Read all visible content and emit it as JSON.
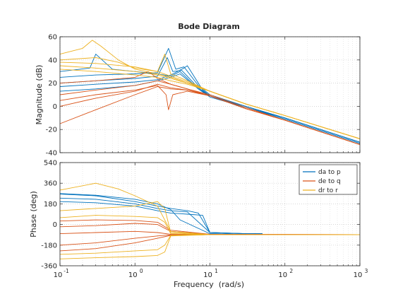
{
  "chart_data": {
    "type": "line",
    "title": "Bode Diagram",
    "xlabel": "Frequency  (rad/s)",
    "xscale": "log",
    "xlim": [
      0.1,
      1000
    ],
    "x_ticks": [
      {
        "base": "10",
        "exp": "-1"
      },
      {
        "base": "10",
        "exp": "0"
      },
      {
        "base": "10",
        "exp": "1"
      },
      {
        "base": "10",
        "exp": "2"
      },
      {
        "base": "10",
        "exp": "3"
      }
    ],
    "grid": true,
    "legend_position": "top-right of phase panel",
    "series": [
      {
        "name": "da to p",
        "color": "#0072BD"
      },
      {
        "name": "de to q",
        "color": "#D95319"
      },
      {
        "name": "dr to r",
        "color": "#EDB120"
      }
    ],
    "panels": [
      {
        "ylabel": "Magnitude (dB)",
        "ylim": [
          -40,
          60
        ],
        "yticks": [
          "60",
          "40",
          "20",
          "0",
          "-20",
          "-40"
        ],
        "curves": {
          "da to p": [
            {
              "x": [
                0.1,
                0.3,
                1,
                2,
                2.8,
                3.5,
                4.5,
                7,
                10,
                30,
                100,
                1000
              ],
              "y": [
                25,
                27,
                28,
                29,
                50,
                32,
                34,
                18,
                10,
                0,
                -10,
                -31
              ]
            },
            {
              "x": [
                0.1,
                0.3,
                1,
                2,
                2.7,
                3.2,
                4.2,
                7,
                10,
                30,
                100,
                1000
              ],
              "y": [
                20,
                22,
                24,
                26,
                42,
                30,
                31,
                16,
                9,
                -1,
                -11,
                -32
              ]
            },
            {
              "x": [
                0.1,
                0.3,
                1,
                2,
                3,
                4.5,
                5,
                8,
                10,
                30,
                100,
                1000
              ],
              "y": [
                17,
                19,
                21,
                23,
                27,
                33,
                35,
                14,
                9,
                -1,
                -10,
                -31
              ]
            },
            {
              "x": [
                0.1,
                0.3,
                1,
                2,
                3,
                4,
                7,
                10,
                30,
                100,
                1000
              ],
              "y": [
                13,
                15,
                18,
                22,
                25,
                28,
                15,
                8,
                -1,
                -11,
                -32
              ]
            },
            {
              "x": [
                0.1,
                0.25,
                0.3,
                0.5,
                1,
                2,
                3,
                4,
                7,
                10,
                30,
                100,
                1000
              ],
              "y": [
                30,
                33,
                45,
                32,
                30,
                28,
                26,
                30,
                15,
                9,
                0,
                -10,
                -31
              ]
            }
          ],
          "de to q": [
            {
              "x": [
                0.1,
                0.3,
                1,
                2,
                2.6,
                2.8,
                3.2,
                5,
                10,
                30,
                100,
                1000
              ],
              "y": [
                5,
                10,
                14,
                18,
                10,
                -3,
                10,
                13,
                9,
                -2,
                -12,
                -33
              ]
            },
            {
              "x": [
                0.1,
                0.3,
                1,
                2,
                3,
                5,
                10,
                30,
                100,
                1000
              ],
              "y": [
                -15,
                -3,
                10,
                17,
                15,
                14,
                9,
                -2,
                -12,
                -33
              ]
            },
            {
              "x": [
                0.1,
                0.3,
                1,
                2,
                3,
                5,
                10,
                30,
                100,
                1000
              ],
              "y": [
                0,
                7,
                13,
                19,
                16,
                14,
                9,
                -2,
                -12,
                -33
              ]
            },
            {
              "x": [
                0.1,
                0.3,
                1,
                2,
                3,
                5,
                10,
                30,
                100,
                1000
              ],
              "y": [
                10,
                14,
                18,
                22,
                19,
                15,
                9,
                -2,
                -12,
                -33
              ]
            },
            {
              "x": [
                0.1,
                0.3,
                1,
                1.5,
                2,
                3,
                5,
                10,
                30,
                100,
                1000
              ],
              "y": [
                20,
                22,
                25,
                30,
                24,
                19,
                15,
                10,
                -1,
                -12,
                -33
              ]
            }
          ],
          "dr to r": [
            {
              "x": [
                0.1,
                0.2,
                0.27,
                0.35,
                0.6,
                1,
                2,
                3,
                5,
                10,
                30,
                100,
                1000
              ],
              "y": [
                45,
                50,
                57,
                52,
                40,
                32,
                28,
                25,
                20,
                13,
                2,
                -8,
                -28
              ]
            },
            {
              "x": [
                0.1,
                0.3,
                0.6,
                1,
                2,
                2.5,
                3,
                5,
                10,
                30,
                100,
                1000
              ],
              "y": [
                40,
                42,
                38,
                33,
                30,
                45,
                28,
                22,
                13,
                2,
                -8,
                -28
              ]
            },
            {
              "x": [
                0.1,
                0.3,
                1,
                2,
                3,
                5,
                10,
                30,
                100,
                1000
              ],
              "y": [
                38,
                37,
                34,
                30,
                26,
                21,
                13,
                2,
                -8,
                -28
              ]
            },
            {
              "x": [
                0.1,
                0.3,
                1,
                2,
                3,
                5,
                10,
                30,
                100,
                1000
              ],
              "y": [
                35,
                33,
                30,
                27,
                24,
                20,
                13,
                2,
                -8,
                -28
              ]
            },
            {
              "x": [
                0.1,
                0.3,
                1,
                2,
                3,
                5,
                10,
                30,
                100,
                1000
              ],
              "y": [
                32,
                30,
                27,
                25,
                22,
                19,
                13,
                2,
                -8,
                -28
              ]
            }
          ]
        }
      },
      {
        "ylabel": "Phase (deg)",
        "ylim": [
          -360,
          540
        ],
        "yticks": [
          "540",
          "360",
          "180",
          "0",
          "-180",
          "-360"
        ],
        "curves": {
          "da to p": [
            {
              "x": [
                0.1,
                0.3,
                1,
                2,
                3,
                5,
                7,
                10,
                30,
                50
              ],
              "y": [
                265,
                250,
                200,
                160,
                140,
                120,
                100,
                -70,
                -80,
                -80
              ]
            },
            {
              "x": [
                0.1,
                0.3,
                1,
                2,
                3,
                5,
                10,
                30,
                50
              ],
              "y": [
                230,
                220,
                180,
                140,
                120,
                110,
                -70,
                -80,
                -80
              ]
            },
            {
              "x": [
                0.1,
                0.3,
                1,
                2,
                3,
                5,
                8,
                10,
                30,
                50
              ],
              "y": [
                200,
                190,
                160,
                120,
                100,
                90,
                80,
                -70,
                -80,
                -80
              ]
            },
            {
              "x": [
                0.1,
                0.3,
                1,
                2,
                3,
                4,
                10,
                30
              ],
              "y": [
                270,
                255,
                220,
                180,
                130,
                40,
                -80,
                -85
              ]
            }
          ],
          "de to q": [
            {
              "x": [
                0.1,
                0.3,
                1,
                2,
                3,
                10,
                1000
              ],
              "y": [
                -20,
                -10,
                10,
                0,
                -60,
                -85,
                -88
              ]
            },
            {
              "x": [
                0.1,
                0.3,
                1,
                2,
                3,
                10,
                1000
              ],
              "y": [
                30,
                40,
                35,
                20,
                -50,
                -85,
                -88
              ]
            },
            {
              "x": [
                0.1,
                0.3,
                1,
                2,
                3,
                10,
                1000
              ],
              "y": [
                -80,
                -70,
                -60,
                -70,
                -85,
                -88,
                -88
              ]
            },
            {
              "x": [
                0.1,
                0.3,
                1,
                2,
                3,
                10,
                1000
              ],
              "y": [
                -180,
                -160,
                -120,
                -100,
                -90,
                -88,
                -88
              ]
            },
            {
              "x": [
                0.1,
                0.3,
                1,
                2,
                3,
                10,
                1000
              ],
              "y": [
                -230,
                -210,
                -160,
                -120,
                -95,
                -88,
                -88
              ]
            }
          ],
          "dr to r": [
            {
              "x": [
                0.1,
                0.3,
                0.6,
                1,
                2,
                3,
                10,
                1000
              ],
              "y": [
                300,
                360,
                310,
                250,
                160,
                -60,
                -88,
                -88
              ]
            },
            {
              "x": [
                0.1,
                0.3,
                1,
                2,
                2.5,
                3,
                10,
                1000
              ],
              "y": [
                120,
                140,
                160,
                200,
                140,
                -70,
                -88,
                -88
              ]
            },
            {
              "x": [
                0.1,
                0.3,
                1,
                2,
                2.5,
                3,
                10,
                1000
              ],
              "y": [
                60,
                80,
                70,
                60,
                20,
                -80,
                -88,
                -88
              ]
            },
            {
              "x": [
                0.1,
                0.3,
                1,
                2,
                2.5,
                3,
                10,
                1000
              ],
              "y": [
                -300,
                -290,
                -280,
                -270,
                -240,
                -100,
                -88,
                -88
              ]
            },
            {
              "x": [
                0.1,
                0.3,
                1,
                2,
                2.5,
                3,
                10,
                1000
              ],
              "y": [
                -260,
                -250,
                -230,
                -220,
                -180,
                -95,
                -88,
                -88
              ]
            }
          ]
        }
      }
    ]
  }
}
